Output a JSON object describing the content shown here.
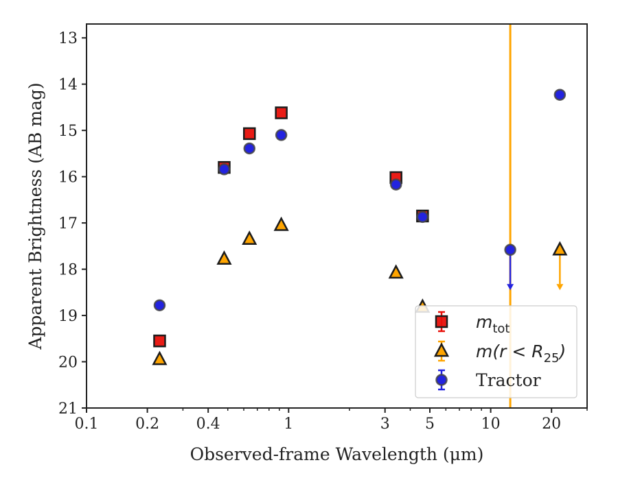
{
  "chart_data": {
    "type": "scatter",
    "xlabel": "Observed-frame Wavelength (μm)",
    "ylabel": "Apparent Brightness (AB mag)",
    "x_scale": "log",
    "xlim": [
      0.1,
      30
    ],
    "ylim": [
      21,
      12.7
    ],
    "y_inverted": true,
    "x_ticks": [
      {
        "value": 0.1,
        "label": "0.1"
      },
      {
        "value": 0.2,
        "label": "0.2"
      },
      {
        "value": 0.4,
        "label": "0.4"
      },
      {
        "value": 1,
        "label": "1"
      },
      {
        "value": 3,
        "label": "3"
      },
      {
        "value": 5,
        "label": "5"
      },
      {
        "value": 10,
        "label": "10"
      },
      {
        "value": 20,
        "label": "20"
      }
    ],
    "x_minor_ticks": [
      0.3,
      0.5,
      0.6,
      0.7,
      0.8,
      0.9,
      2,
      4,
      6,
      7,
      8,
      9,
      30
    ],
    "y_ticks": [
      {
        "value": 13,
        "label": "13"
      },
      {
        "value": 14,
        "label": "14"
      },
      {
        "value": 15,
        "label": "15"
      },
      {
        "value": 16,
        "label": "16"
      },
      {
        "value": 17,
        "label": "17"
      },
      {
        "value": 18,
        "label": "18"
      },
      {
        "value": 19,
        "label": "19"
      },
      {
        "value": 20,
        "label": "20"
      },
      {
        "value": 21,
        "label": "21"
      }
    ],
    "grid": false,
    "legend_position": "lower-right",
    "vertical_line": {
      "x": 12.5,
      "color": "#ffa500"
    },
    "series": [
      {
        "marker": "square",
        "color": "#e8100a",
        "points": [
          {
            "x": 0.23,
            "y": 19.55
          },
          {
            "x": 0.48,
            "y": 15.8
          },
          {
            "x": 0.64,
            "y": 15.07
          },
          {
            "x": 0.92,
            "y": 14.62
          },
          {
            "x": 3.4,
            "y": 16.02
          },
          {
            "x": 4.6,
            "y": 16.85
          }
        ]
      },
      {
        "marker": "triangle",
        "color": "#ffa500",
        "points": [
          {
            "x": 0.23,
            "y": 19.95
          },
          {
            "x": 0.48,
            "y": 17.78
          },
          {
            "x": 0.64,
            "y": 17.35
          },
          {
            "x": 0.92,
            "y": 17.05
          },
          {
            "x": 3.4,
            "y": 18.08
          },
          {
            "x": 4.6,
            "y": 18.82
          },
          {
            "x": 22,
            "y": 17.58,
            "upper_limit": true
          }
        ]
      },
      {
        "name": "Tractor",
        "marker": "circle",
        "color": "#2323e0",
        "points": [
          {
            "x": 0.23,
            "y": 18.78
          },
          {
            "x": 0.48,
            "y": 15.84
          },
          {
            "x": 0.64,
            "y": 15.39
          },
          {
            "x": 0.92,
            "y": 15.1
          },
          {
            "x": 3.4,
            "y": 16.17
          },
          {
            "x": 4.6,
            "y": 16.87
          },
          {
            "x": 12.5,
            "y": 17.58,
            "upper_limit": true
          },
          {
            "x": 22,
            "y": 14.23
          }
        ]
      }
    ],
    "legend": [
      {
        "marker": "square",
        "color": "#e8100a",
        "label_main": "m",
        "label_sub": "tot"
      },
      {
        "marker": "triangle",
        "color": "#ffa500",
        "label_pre": "m(r < R",
        "label_sub": "25",
        "label_post": ")"
      },
      {
        "marker": "circle",
        "color": "#2323e0",
        "label": "Tractor"
      }
    ]
  }
}
